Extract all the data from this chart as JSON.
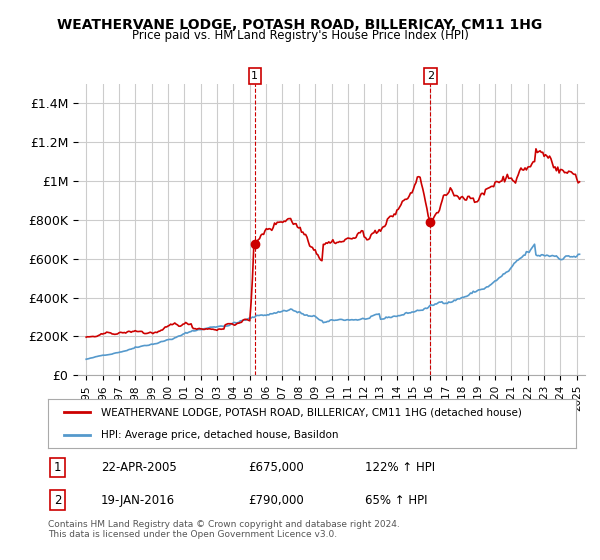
{
  "title": "WEATHERVANE LODGE, POTASH ROAD, BILLERICAY, CM11 1HG",
  "subtitle": "Price paid vs. HM Land Registry's House Price Index (HPI)",
  "red_label": "WEATHERVANE LODGE, POTASH ROAD, BILLERICAY, CM11 1HG (detached house)",
  "blue_label": "HPI: Average price, detached house, Basildon",
  "sale1_label": "1",
  "sale1_date": "22-APR-2005",
  "sale1_price": "£675,000",
  "sale1_hpi": "122% ↑ HPI",
  "sale2_label": "2",
  "sale2_date": "19-JAN-2016",
  "sale2_price": "£790,000",
  "sale2_hpi": "65% ↑ HPI",
  "footer": "Contains HM Land Registry data © Crown copyright and database right 2024.\nThis data is licensed under the Open Government Licence v3.0.",
  "red_color": "#cc0000",
  "blue_color": "#5599cc",
  "sale1_x": 2005.31,
  "sale1_y": 675000,
  "sale2_x": 2016.05,
  "sale2_y": 790000,
  "ylim": [
    0,
    1500000
  ],
  "xlim": [
    1994.5,
    2025.5
  ],
  "bg_color": "#ffffff",
  "grid_color": "#cccccc"
}
